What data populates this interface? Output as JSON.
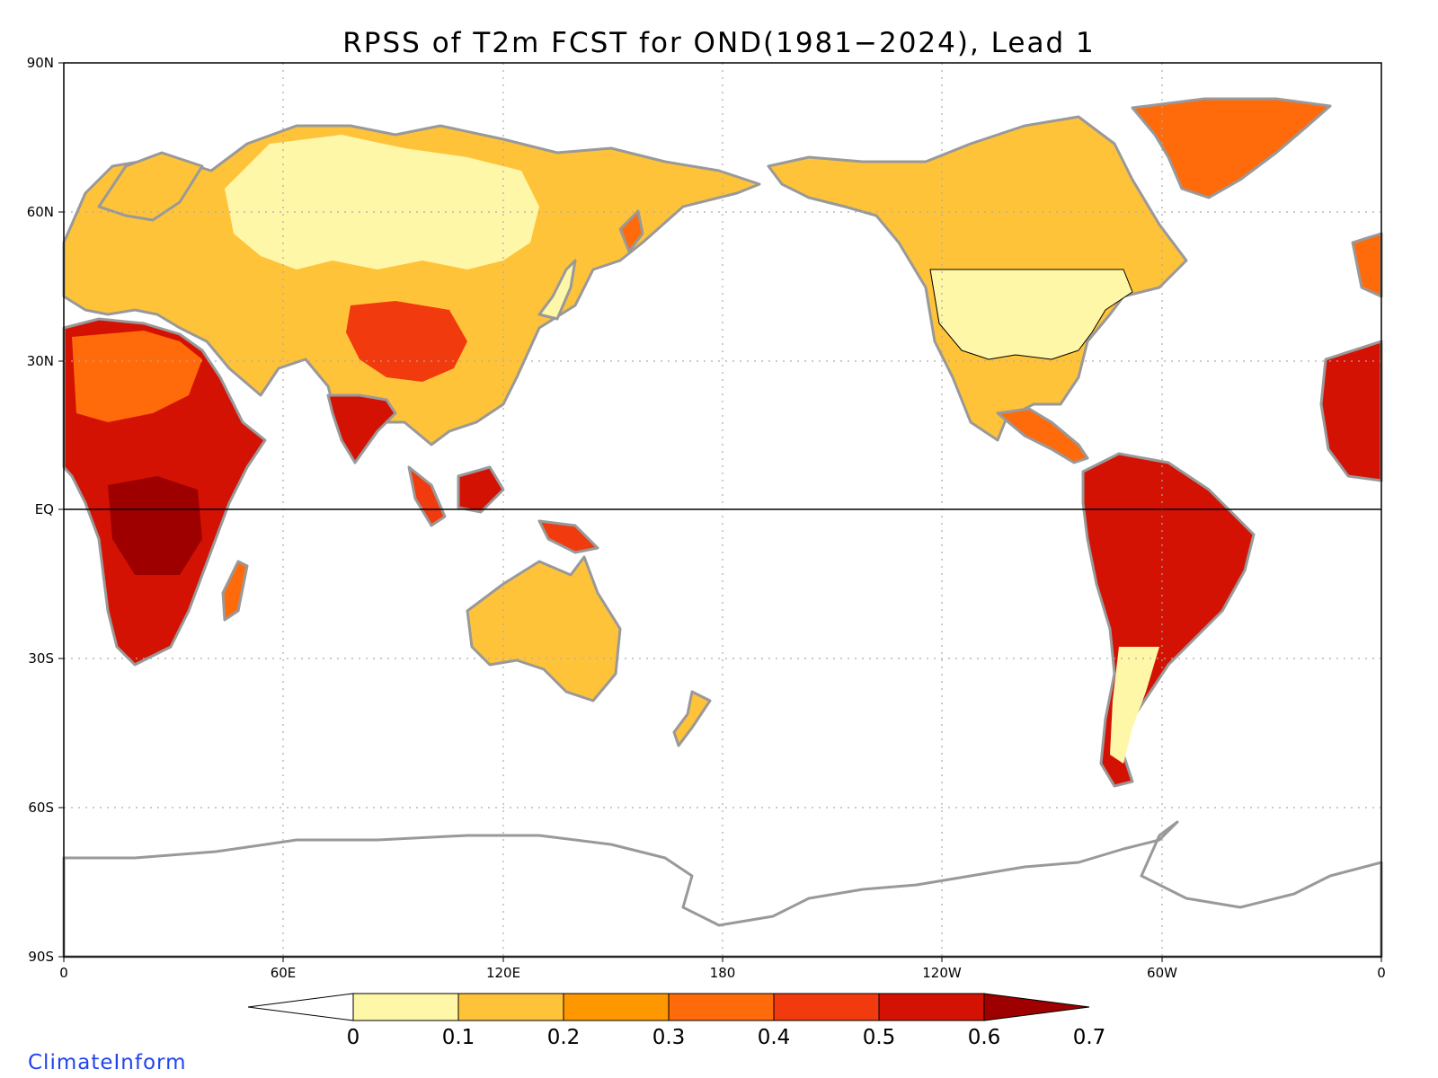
{
  "title": "RPSS of T2m FCST for OND(1981−2024), Lead 1",
  "credit": "ClimateInform",
  "colors": {
    "credit": "#2244ee",
    "land_outline": "#999999",
    "gridline": "#aaaaaa",
    "bins": [
      "#ffffff",
      "#fff7a8",
      "#ffc33a",
      "#ff9800",
      "#ff6a0b",
      "#f13a0d",
      "#d41204",
      "#9e0000"
    ]
  },
  "axes": {
    "lat_ticks": [
      "90N",
      "60N",
      "30N",
      "EQ",
      "30S",
      "60S",
      "90S"
    ],
    "lon_ticks": [
      "0",
      "60E",
      "120E",
      "180",
      "120W",
      "60W",
      "0"
    ]
  },
  "colorbar": {
    "ticks": [
      "0",
      "0.1",
      "0.2",
      "0.3",
      "0.4",
      "0.5",
      "0.6",
      "0.7"
    ]
  },
  "map": {
    "projection": "cylindrical equidistant, 0° to 360° longitude, 90S to 90N",
    "field": "RPSS of 2m temperature forecast over land"
  }
}
